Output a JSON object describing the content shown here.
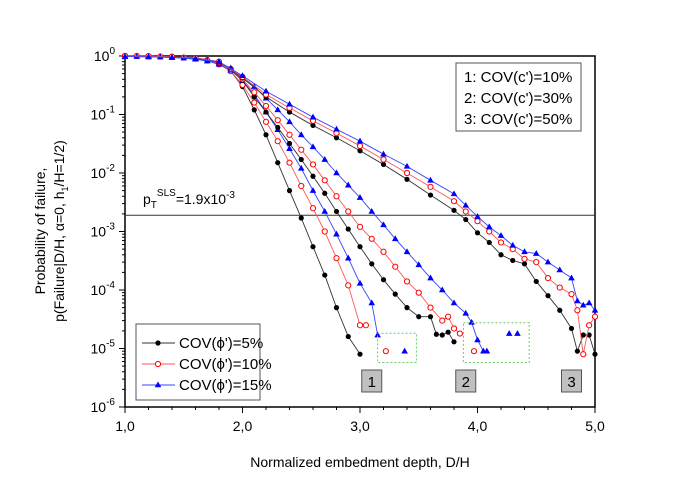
{
  "chart_data": {
    "type": "line",
    "title": "",
    "xlabel": "Normalized embedment depth, D/H",
    "ylabel_line1": "Probability of failure,",
    "ylabel_line2_parts": [
      "p(Failure|D/H, ",
      "α",
      "=0, h",
      "1",
      "/H=1/2)"
    ],
    "xlim": [
      1.0,
      5.0
    ],
    "ylim_log10": [
      -6,
      0
    ],
    "y_scale": "log",
    "x_ticks": [
      1.0,
      2.0,
      3.0,
      4.0,
      5.0
    ],
    "x_tick_labels": [
      "1,0",
      "2,0",
      "3,0",
      "4,0",
      "5,0"
    ],
    "y_ticks_exp": [
      0,
      -1,
      -2,
      -3,
      -4,
      -5,
      -6
    ],
    "y_tick_base": "10",
    "grid": false,
    "threshold": {
      "value": 0.0019,
      "label_main": "p",
      "label_sub": "T",
      "label_sup": "SLS",
      "label_rest": "=1.9x10",
      "label_exp": "-3"
    },
    "legend_series": {
      "placement": "bottom-left",
      "entries": [
        {
          "label": "COV(ϕ')=5%",
          "color": "#000000",
          "marker": "filled-circle"
        },
        {
          "label": "COV(ϕ')=10%",
          "color": "#ff0000",
          "marker": "open-circle"
        },
        {
          "label": "COV(ϕ')=15%",
          "color": "#0000ff",
          "marker": "filled-triangle"
        }
      ]
    },
    "legend_groups": {
      "placement": "top-right",
      "entries": [
        "1: COV(c')=10%",
        "2: COV(c')=30%",
        "3: COV(c')=50%"
      ]
    },
    "group_labels": [
      {
        "label": "1",
        "x": 3.1
      },
      {
        "label": "2",
        "x": 3.9
      },
      {
        "label": "3",
        "x": 4.8
      }
    ],
    "series": [
      {
        "name": "COV(ϕ')=5%",
        "group": "1",
        "color": "#000000",
        "marker": "filled-circle",
        "x": [
          1.0,
          1.1,
          1.2,
          1.3,
          1.4,
          1.5,
          1.6,
          1.7,
          1.8,
          1.9,
          2.0,
          2.1,
          2.2,
          2.3,
          2.4,
          2.5,
          2.6,
          2.7,
          2.8,
          2.9,
          3.0
        ],
        "y": [
          1.0,
          1.0,
          0.99,
          0.98,
          0.97,
          0.95,
          0.92,
          0.87,
          0.75,
          0.55,
          0.3,
          0.12,
          0.045,
          0.015,
          0.005,
          0.0017,
          0.00055,
          0.00018,
          5e-05,
          1.6e-05,
          8e-06
        ]
      },
      {
        "name": "COV(ϕ')=10%",
        "group": "1",
        "color": "#ff0000",
        "marker": "open-circle",
        "x": [
          1.0,
          1.1,
          1.2,
          1.3,
          1.4,
          1.5,
          1.6,
          1.7,
          1.8,
          1.9,
          2.0,
          2.1,
          2.2,
          2.3,
          2.4,
          2.5,
          2.6,
          2.7,
          2.8,
          2.9,
          3.0,
          3.05
        ],
        "y": [
          1.0,
          1.0,
          0.99,
          0.98,
          0.96,
          0.94,
          0.9,
          0.84,
          0.72,
          0.55,
          0.32,
          0.16,
          0.075,
          0.035,
          0.015,
          0.006,
          0.0025,
          0.001,
          0.00035,
          0.00012,
          2.5e-05,
          2.5e-05
        ]
      },
      {
        "name": "COV(ϕ')=15%",
        "group": "1",
        "color": "#0000ff",
        "marker": "filled-triangle",
        "x": [
          1.0,
          1.1,
          1.2,
          1.3,
          1.4,
          1.5,
          1.6,
          1.7,
          1.8,
          1.9,
          2.0,
          2.1,
          2.2,
          2.3,
          2.4,
          2.5,
          2.6,
          2.7,
          2.8,
          2.9,
          3.0,
          3.1,
          3.15
        ],
        "y": [
          0.98,
          0.98,
          0.97,
          0.96,
          0.94,
          0.92,
          0.88,
          0.82,
          0.72,
          0.57,
          0.38,
          0.22,
          0.11,
          0.055,
          0.026,
          0.012,
          0.005,
          0.0022,
          0.0009,
          0.00035,
          0.00013,
          6e-05,
          1.7e-05
        ]
      },
      {
        "name": "COV(ϕ')=5%",
        "group": "2",
        "color": "#000000",
        "marker": "filled-circle",
        "x": [
          1.0,
          1.2,
          1.4,
          1.6,
          1.8,
          1.9,
          2.0,
          2.1,
          2.2,
          2.3,
          2.4,
          2.5,
          2.6,
          2.7,
          2.8,
          2.9,
          3.0,
          3.1,
          3.2,
          3.3,
          3.4,
          3.5,
          3.6,
          3.65,
          3.7,
          3.75,
          3.8
        ],
        "y": [
          1.0,
          0.99,
          0.97,
          0.93,
          0.78,
          0.6,
          0.38,
          0.2,
          0.11,
          0.06,
          0.032,
          0.017,
          0.0088,
          0.0045,
          0.0022,
          0.0011,
          0.00055,
          0.00028,
          0.00015,
          8.5e-05,
          5e-05,
          3.5e-05,
          3.5e-05,
          1.75e-05,
          1.7e-05,
          1.9e-05,
          1.3e-05
        ]
      },
      {
        "name": "COV(ϕ')=10%",
        "group": "2",
        "color": "#ff0000",
        "marker": "open-circle",
        "x": [
          1.0,
          1.2,
          1.4,
          1.6,
          1.8,
          1.9,
          2.0,
          2.1,
          2.2,
          2.3,
          2.4,
          2.5,
          2.6,
          2.7,
          2.8,
          2.9,
          3.0,
          3.1,
          3.2,
          3.3,
          3.4,
          3.5,
          3.6,
          3.7,
          3.75,
          3.8,
          3.85
        ],
        "y": [
          1.0,
          0.99,
          0.97,
          0.92,
          0.78,
          0.6,
          0.4,
          0.24,
          0.14,
          0.08,
          0.045,
          0.025,
          0.014,
          0.0075,
          0.004,
          0.0022,
          0.0012,
          0.00075,
          0.00045,
          0.00025,
          0.00014,
          9e-05,
          5e-05,
          3e-05,
          3.5e-05,
          2.2e-05,
          1.8e-05
        ]
      },
      {
        "name": "COV(ϕ')=15%",
        "group": "2",
        "color": "#0000ff",
        "marker": "filled-triangle",
        "x": [
          1.0,
          1.2,
          1.4,
          1.6,
          1.8,
          1.9,
          2.0,
          2.1,
          2.2,
          2.3,
          2.4,
          2.5,
          2.6,
          2.7,
          2.8,
          2.9,
          3.0,
          3.1,
          3.2,
          3.3,
          3.4,
          3.5,
          3.6,
          3.7,
          3.8,
          3.9,
          3.95,
          4.0,
          4.05
        ],
        "y": [
          0.98,
          0.97,
          0.95,
          0.9,
          0.78,
          0.62,
          0.44,
          0.3,
          0.19,
          0.12,
          0.075,
          0.045,
          0.028,
          0.017,
          0.01,
          0.0062,
          0.0038,
          0.0022,
          0.0013,
          0.00075,
          0.00045,
          0.00027,
          0.00016,
          0.0001,
          6e-05,
          4e-05,
          2.8e-05,
          1.4e-05,
          9e-06
        ]
      },
      {
        "name": "COV(ϕ')=5%",
        "group": "3",
        "color": "#000000",
        "marker": "filled-circle",
        "x": [
          1.0,
          1.2,
          1.4,
          1.6,
          1.8,
          2.0,
          2.2,
          2.4,
          2.6,
          2.8,
          3.0,
          3.2,
          3.4,
          3.6,
          3.8,
          3.9,
          4.0,
          4.1,
          4.2,
          4.3,
          4.4,
          4.5,
          4.6,
          4.7,
          4.8,
          4.85,
          4.9,
          4.95,
          5.0
        ],
        "y": [
          1.0,
          0.99,
          0.97,
          0.93,
          0.8,
          0.42,
          0.2,
          0.11,
          0.065,
          0.04,
          0.024,
          0.014,
          0.0078,
          0.0042,
          0.0023,
          0.0016,
          0.00095,
          0.00065,
          0.0004,
          0.00032,
          0.00028,
          0.00014,
          8e-05,
          4.5e-05,
          2.2e-05,
          9e-06,
          1.7e-05,
          1.7e-05,
          8e-06
        ]
      },
      {
        "name": "COV(ϕ')=10%",
        "group": "3",
        "color": "#ff0000",
        "marker": "open-circle",
        "x": [
          1.0,
          1.2,
          1.4,
          1.6,
          1.8,
          2.0,
          2.2,
          2.4,
          2.6,
          2.8,
          3.0,
          3.2,
          3.4,
          3.6,
          3.8,
          3.9,
          4.0,
          4.1,
          4.2,
          4.3,
          4.4,
          4.5,
          4.6,
          4.7,
          4.8,
          4.85,
          4.9,
          4.95,
          5.0
        ],
        "y": [
          1.0,
          0.99,
          0.97,
          0.92,
          0.8,
          0.44,
          0.22,
          0.13,
          0.078,
          0.048,
          0.029,
          0.017,
          0.01,
          0.0058,
          0.0033,
          0.0022,
          0.0015,
          0.001,
          0.00065,
          0.0005,
          0.00034,
          0.0003,
          0.00016,
          0.00011,
          8.5e-05,
          4.5e-05,
          8e-06,
          2.5e-05,
          3.5e-05
        ]
      },
      {
        "name": "COV(ϕ')=15%",
        "group": "3",
        "color": "#0000ff",
        "marker": "filled-triangle",
        "x": [
          1.0,
          1.2,
          1.4,
          1.6,
          1.8,
          2.0,
          2.2,
          2.4,
          2.6,
          2.8,
          3.0,
          3.2,
          3.4,
          3.6,
          3.8,
          3.9,
          4.0,
          4.1,
          4.2,
          4.3,
          4.4,
          4.5,
          4.6,
          4.7,
          4.8,
          4.85,
          4.9,
          4.95,
          5.0
        ],
        "y": [
          0.98,
          0.97,
          0.95,
          0.9,
          0.8,
          0.46,
          0.25,
          0.15,
          0.09,
          0.056,
          0.035,
          0.021,
          0.013,
          0.0075,
          0.0044,
          0.0028,
          0.0018,
          0.0012,
          0.00085,
          0.00058,
          0.00045,
          0.00042,
          0.0003,
          0.00022,
          0.00016,
          6.5e-05,
          5.5e-05,
          6e-05,
          4.5e-05
        ]
      }
    ],
    "outliers": [
      {
        "group": "1",
        "color": "#ff0000",
        "marker": "open-circle",
        "x": 3.22,
        "y": 9e-06
      },
      {
        "group": "1",
        "color": "#0000ff",
        "marker": "filled-triangle",
        "x": 3.38,
        "y": 9e-06
      },
      {
        "group": "2",
        "color": "#ff0000",
        "marker": "open-circle",
        "x": 3.97,
        "y": 9e-06
      },
      {
        "group": "2",
        "color": "#0000ff",
        "marker": "filled-triangle",
        "x": 4.08,
        "y": 9e-06
      },
      {
        "group": "2",
        "color": "#0000ff",
        "marker": "filled-triangle",
        "x": 4.27,
        "y": 1.8e-05
      },
      {
        "group": "2",
        "color": "#0000ff",
        "marker": "filled-triangle",
        "x": 4.34,
        "y": 1.8e-05
      }
    ],
    "outlier_boxes": [
      {
        "group": "1",
        "x": [
          3.15,
          3.48
        ],
        "y_log10": [
          -4.74,
          -5.24
        ]
      },
      {
        "group": "2",
        "x": [
          3.88,
          4.44
        ],
        "y_log10": [
          -4.56,
          -5.24
        ]
      }
    ]
  }
}
